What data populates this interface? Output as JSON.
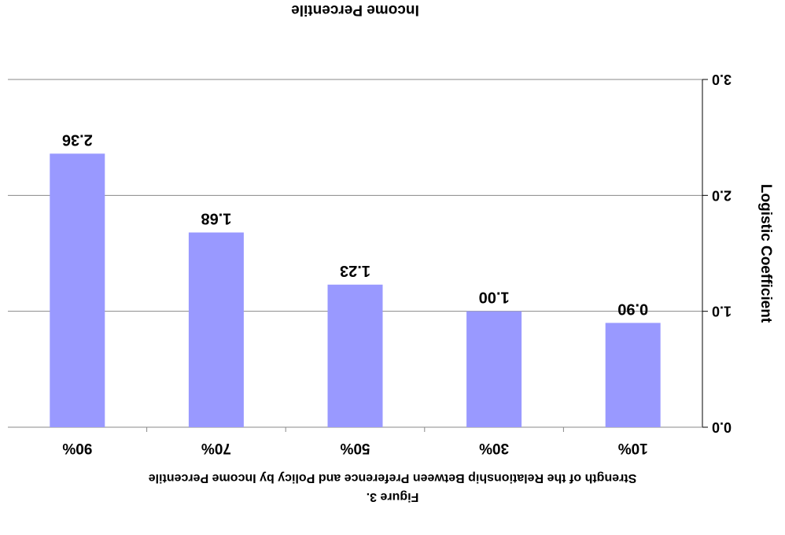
{
  "figure": {
    "label": "Figure 3.",
    "caption": "Strength of the Relationship Between Preference and Policy by Income Percentile"
  },
  "colors": {
    "bar": "#9999ff",
    "gridline": "#888888"
  },
  "chart_data": {
    "type": "bar",
    "orientation": "rendered-rotated-180",
    "categories": [
      "10%",
      "30%",
      "50%",
      "70%",
      "90%"
    ],
    "values": [
      0.9,
      1.0,
      1.23,
      1.68,
      2.36
    ],
    "data_labels": [
      "0.90",
      "1.00",
      "1.23",
      "1.68",
      "2.36"
    ],
    "xlabel": "Income Percentile",
    "ylabel": "Logistic Coefficient",
    "ylim": [
      0,
      3
    ],
    "yticks": [
      0,
      1,
      2,
      3
    ],
    "ytick_labels": [
      "0.0",
      "1.0",
      "2.0",
      "3.0"
    ],
    "grid": true,
    "legend": "none"
  }
}
